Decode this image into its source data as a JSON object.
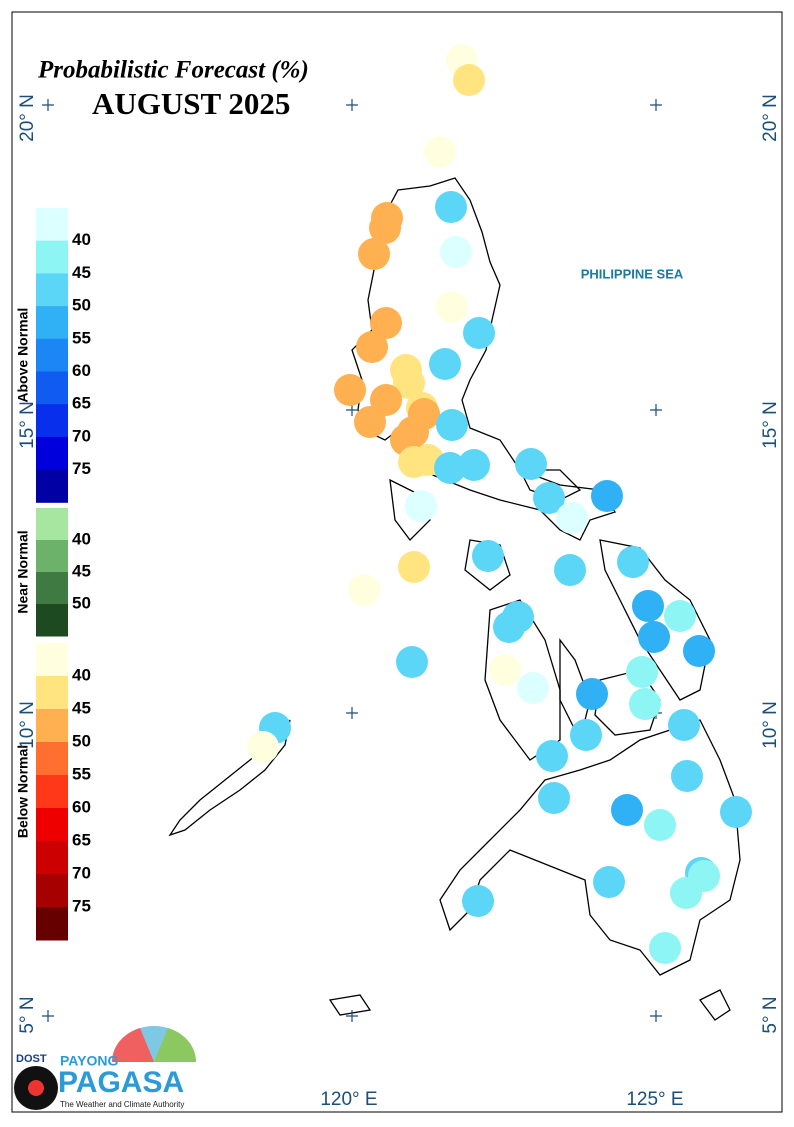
{
  "map": {
    "title": "Probabilistic Forecast (%)",
    "subtitle": "AUGUST 2025",
    "lat_labels": [
      "20° N",
      "15° N",
      "10° N",
      "5° N"
    ],
    "lon_labels": [
      "120° E",
      "125° E"
    ],
    "sea_label": "PHILIPPINE SEA",
    "legend": [
      {
        "title": "Above Normal",
        "labels": [
          40,
          45,
          50,
          55,
          60,
          65,
          70,
          75
        ]
      },
      {
        "title": "Near Normal",
        "labels": [
          40,
          45,
          50
        ]
      },
      {
        "title": "Below Normal",
        "labels": [
          40,
          45,
          50,
          55,
          60,
          65,
          70,
          75
        ]
      }
    ],
    "logo": {
      "agency": "DOST",
      "brand_top": "PAYONG",
      "brand": "PAGASA",
      "tagline": "The Weather and Climate Authority"
    }
  }
}
